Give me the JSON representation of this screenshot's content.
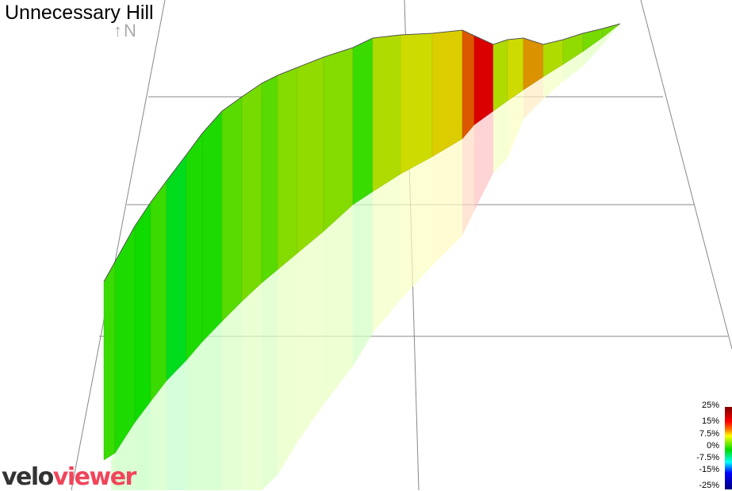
{
  "title": "Unnecessary Hill",
  "compass": "↑N",
  "logo": {
    "part1": "velo",
    "part2": "viewer"
  },
  "legend": {
    "labels": [
      "25%",
      "15%",
      "7.5%",
      "0%",
      "-7.5%",
      "-15%",
      "-25%"
    ]
  },
  "chart_data": {
    "type": "area",
    "title": "Unnecessary Hill",
    "color_scale": {
      "min": -25,
      "max": 25,
      "unit": "%",
      "colors": [
        "#000080",
        "#0000ff",
        "#00ffff",
        "#00dd00",
        "#ffff00",
        "#ff0000",
        "#800000"
      ]
    },
    "gradient_segments": [
      2,
      1,
      0.5,
      2,
      -1,
      1,
      1,
      3,
      4,
      3,
      4.5,
      5,
      4.5,
      2,
      6,
      7,
      8,
      12,
      16,
      6,
      7,
      10,
      6,
      5,
      4,
      4
    ],
    "grid": true
  }
}
